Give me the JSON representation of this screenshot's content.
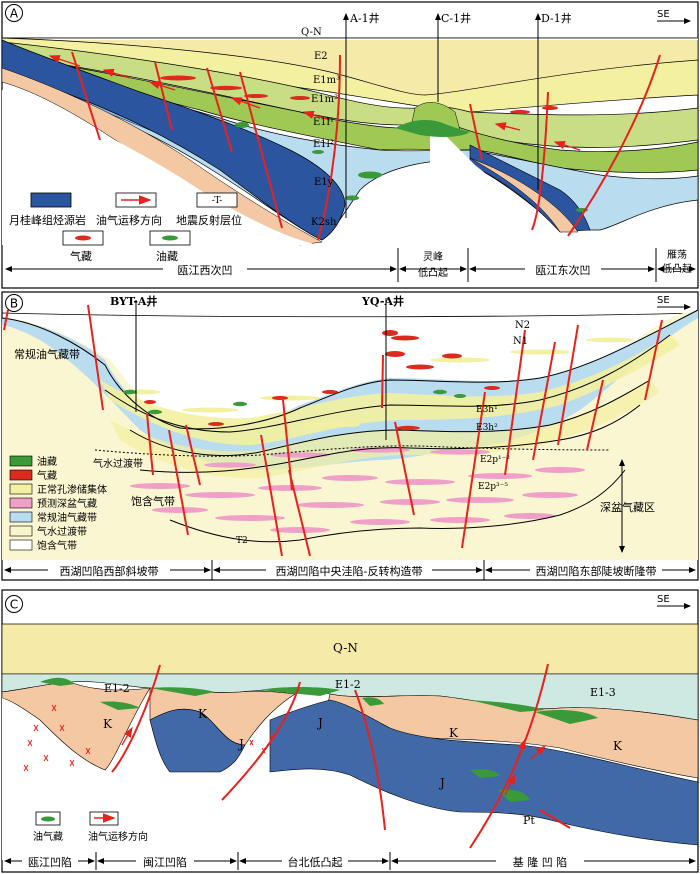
{
  "panels": {
    "a": {
      "letter": "A",
      "direction": "SE",
      "wells": [
        "A-1井",
        "C-1井",
        "D-1井"
      ],
      "layers": [
        "Q-N",
        "E2",
        "E1m³",
        "E1m²",
        "E1l¹",
        "E1l²",
        "E1y",
        "K2sh"
      ],
      "legend": {
        "source_rock": "月桂峰组烃源岩",
        "migration": "油气运移方向",
        "seismic": "地震反射层位",
        "seismic_symbol": "-T-",
        "gas": "气藏",
        "oil": "油藏"
      },
      "zones": [
        "瓯江西次凹",
        "灵峰",
        "低凸起",
        "瓯江东次凹",
        "雁荡",
        "低凸起"
      ]
    },
    "b": {
      "letter": "B",
      "direction": "SE",
      "wells": [
        "BYT-A井",
        "YQ-A井"
      ],
      "layers": [
        "N2",
        "N1",
        "E3h¹",
        "E3h²",
        "E2p¹⁻²",
        "E2p³⁻⁵",
        "T2"
      ],
      "labels": {
        "conventional": "常规油气藏带",
        "transition": "气水过渡带",
        "saturated": "饱含气带",
        "deep_basin": "深盆气藏区"
      },
      "legend": [
        "油藏",
        "气藏",
        "正常孔渗储集体",
        "预测深盆气藏",
        "常规油气藏带",
        "气水过渡带",
        "饱含气带"
      ],
      "zones": [
        "西湖凹陷西部斜坡带",
        "西湖凹陷中央洼陷-反转构造带",
        "西湖凹陷东部陡坡断隆带"
      ]
    },
    "c": {
      "letter": "C",
      "direction": "SE",
      "layers": [
        "Q-N",
        "E1-2",
        "E1-2",
        "E1-3",
        "K",
        "K",
        "K",
        "K",
        "J",
        "J",
        "J",
        "Pt"
      ],
      "legend": {
        "oil_gas": "油气藏",
        "migration": "油气运移方向"
      },
      "zones": [
        "瓯江凹陷",
        "闽江凹陷",
        "台北低凸起",
        "基 隆 凹 陷"
      ]
    }
  },
  "colors": {
    "qn": "#f5eaa8",
    "e2": "#f3f0a0",
    "green_light": "#c9de84",
    "green_mid": "#9fc854",
    "lightblue": "#b9dcef",
    "midblue": "#7fb6e2",
    "darkblue": "#2c55a0",
    "k_peach": "#f4c8a2",
    "fault_red": "#e8211d",
    "oil_green": "#3a9a3a",
    "gas_red": "#dd2a1e",
    "pink": "#ef9fc8",
    "cream": "#fbf6d2",
    "c_teal": "#cde9e2",
    "c_blue": "#4169a8"
  }
}
